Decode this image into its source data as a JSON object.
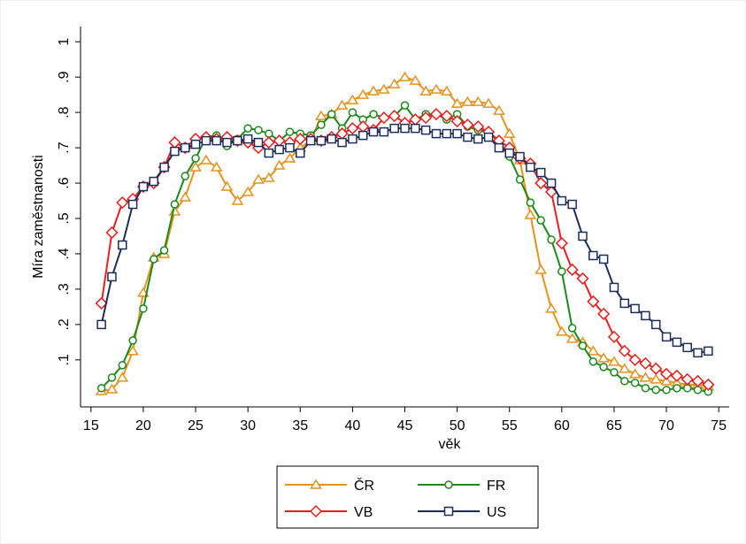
{
  "chart_data": {
    "type": "line",
    "xlabel": "věk",
    "ylabel": "Míra zaměstnanosti",
    "x": [
      16,
      17,
      18,
      19,
      20,
      21,
      22,
      23,
      24,
      25,
      26,
      27,
      28,
      29,
      30,
      31,
      32,
      33,
      34,
      35,
      36,
      37,
      38,
      39,
      40,
      41,
      42,
      43,
      44,
      45,
      46,
      47,
      48,
      49,
      50,
      51,
      52,
      53,
      54,
      55,
      56,
      57,
      58,
      59,
      60,
      61,
      62,
      63,
      64,
      65,
      66,
      67,
      68,
      69,
      70,
      71,
      72,
      73,
      74
    ],
    "xlim": [
      14,
      76
    ],
    "xticks": [
      15,
      20,
      25,
      30,
      35,
      40,
      45,
      50,
      55,
      60,
      65,
      70,
      75
    ],
    "ylim": [
      -0.033,
      1.043
    ],
    "yticks": [
      {
        "value": 0.1,
        "label": ".1"
      },
      {
        "value": 0.2,
        "label": ".2"
      },
      {
        "value": 0.3,
        "label": ".3"
      },
      {
        "value": 0.4,
        "label": ".4"
      },
      {
        "value": 0.5,
        "label": ".5"
      },
      {
        "value": 0.6,
        "label": ".6"
      },
      {
        "value": 0.7,
        "label": ".7"
      },
      {
        "value": 0.8,
        "label": ".8"
      },
      {
        "value": 0.9,
        "label": ".9"
      },
      1
    ],
    "grid": false,
    "series": [
      {
        "name": "ČR",
        "color": "#e8921c",
        "marker": "triangle",
        "values": [
          0.012,
          0.017,
          0.05,
          0.125,
          0.29,
          0.39,
          0.4,
          0.52,
          0.56,
          0.645,
          0.665,
          0.645,
          0.59,
          0.55,
          0.575,
          0.61,
          0.615,
          0.65,
          0.67,
          0.7,
          0.72,
          0.79,
          0.795,
          0.82,
          0.835,
          0.85,
          0.86,
          0.865,
          0.88,
          0.9,
          0.89,
          0.86,
          0.865,
          0.86,
          0.825,
          0.83,
          0.83,
          0.825,
          0.805,
          0.74,
          0.665,
          0.51,
          0.355,
          0.245,
          0.18,
          0.16,
          0.15,
          0.125,
          0.105,
          0.095,
          0.075,
          0.06,
          0.05,
          0.045,
          0.04,
          0.035,
          0.03,
          0.03,
          0.025
        ]
      },
      {
        "name": "FR",
        "color": "#1a8a1a",
        "marker": "circle",
        "values": [
          0.02,
          0.05,
          0.085,
          0.155,
          0.245,
          0.385,
          0.41,
          0.54,
          0.62,
          0.67,
          0.73,
          0.735,
          0.705,
          0.725,
          0.755,
          0.75,
          0.74,
          0.72,
          0.745,
          0.74,
          0.735,
          0.765,
          0.795,
          0.755,
          0.8,
          0.78,
          0.795,
          0.785,
          0.79,
          0.82,
          0.78,
          0.795,
          0.795,
          0.78,
          0.795,
          0.76,
          0.75,
          0.745,
          0.715,
          0.675,
          0.61,
          0.545,
          0.495,
          0.44,
          0.35,
          0.19,
          0.14,
          0.095,
          0.08,
          0.065,
          0.04,
          0.035,
          0.02,
          0.015,
          0.015,
          0.02,
          0.02,
          0.015,
          0.01
        ]
      },
      {
        "name": "VB",
        "color": "#ee1c1c",
        "marker": "diamond",
        "values": [
          0.26,
          0.46,
          0.545,
          0.555,
          0.59,
          0.6,
          0.645,
          0.715,
          0.7,
          0.725,
          0.73,
          0.725,
          0.73,
          0.72,
          0.715,
          0.7,
          0.715,
          0.72,
          0.715,
          0.725,
          0.725,
          0.72,
          0.73,
          0.74,
          0.755,
          0.76,
          0.75,
          0.785,
          0.79,
          0.77,
          0.78,
          0.785,
          0.795,
          0.79,
          0.775,
          0.765,
          0.76,
          0.745,
          0.72,
          0.7,
          0.67,
          0.655,
          0.6,
          0.575,
          0.43,
          0.355,
          0.33,
          0.265,
          0.23,
          0.165,
          0.125,
          0.1,
          0.09,
          0.075,
          0.06,
          0.055,
          0.045,
          0.04,
          0.03
        ]
      },
      {
        "name": "US",
        "color": "#1c2d5a",
        "marker": "square",
        "values": [
          0.2,
          0.335,
          0.425,
          0.54,
          0.59,
          0.605,
          0.645,
          0.69,
          0.7,
          0.71,
          0.72,
          0.72,
          0.715,
          0.72,
          0.725,
          0.715,
          0.685,
          0.695,
          0.7,
          0.685,
          0.72,
          0.72,
          0.725,
          0.715,
          0.725,
          0.735,
          0.745,
          0.745,
          0.755,
          0.755,
          0.755,
          0.75,
          0.74,
          0.74,
          0.74,
          0.73,
          0.725,
          0.73,
          0.7,
          0.685,
          0.675,
          0.645,
          0.63,
          0.6,
          0.55,
          0.54,
          0.45,
          0.395,
          0.385,
          0.305,
          0.26,
          0.245,
          0.225,
          0.2,
          0.165,
          0.15,
          0.135,
          0.12,
          0.125
        ]
      }
    ]
  }
}
